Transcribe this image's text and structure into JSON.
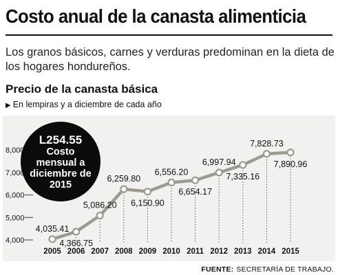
{
  "header": {
    "title": "Costo anual de la canasta alimenticia",
    "subtitle": "Los granos básicos, carnes y verduras predominan en la dieta de los hogares hondureños."
  },
  "chart_header": {
    "title": "Precio de la canasta básica",
    "subtitle": "En lempiras y a diciembre de cada año"
  },
  "badge": {
    "amount": "L254.55",
    "text": "Costo mensual a diciembre de 2015"
  },
  "source": {
    "label": "FUENTE:",
    "text": "SECRETARÍA DE TRABAJO."
  },
  "colors": {
    "line": "#9a9a90",
    "marker_fill": "#ffffff",
    "background": "#f1f1ef",
    "badge": "#0b0b0b"
  },
  "chart_data": {
    "type": "line",
    "categories": [
      "2005",
      "2006",
      "2007",
      "2008",
      "2009",
      "2010",
      "2011",
      "2012",
      "2013",
      "2014",
      "2015"
    ],
    "values": [
      4035.41,
      4366.75,
      5086.2,
      6259.8,
      6150.9,
      6556.2,
      6654.17,
      6997.94,
      7335.16,
      7828.73,
      7890.96
    ],
    "data_labels": [
      "4,035.41",
      "4,366.75",
      "5,086.20",
      "6,259.80",
      "6,150.90",
      "6,556.20",
      "6,654.17",
      "6,997.94",
      "7,335.16",
      "7,828.73",
      "7,890.96"
    ],
    "label_position": [
      "above",
      "below",
      "above",
      "above",
      "below",
      "above",
      "below",
      "above",
      "below",
      "above",
      "below"
    ],
    "yticks": [
      4000,
      5000,
      6000,
      7000,
      8000
    ],
    "ytick_labels": [
      "4,000",
      "5,000",
      "6,000",
      "7,000",
      "8,000"
    ],
    "ylim": [
      4000,
      8100
    ],
    "grid": "vertical dotted",
    "title": "Precio de la canasta básica",
    "xlabel": "",
    "ylabel": ""
  }
}
